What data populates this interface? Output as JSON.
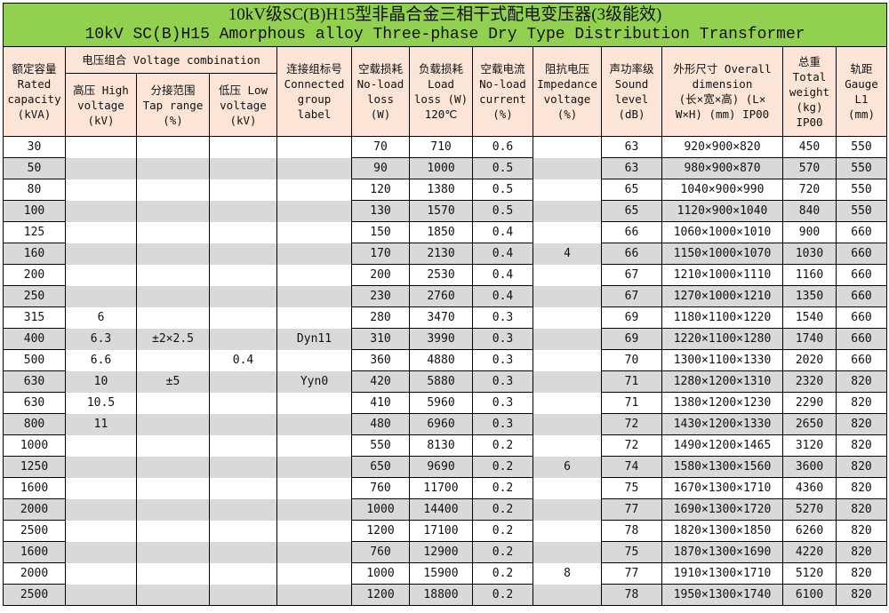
{
  "title": {
    "line1": "10kV级SC(B)H15型非晶合金三相干式配电变压器(3级能效)",
    "line2": "10kV SC(B)H15 Amorphous alloy Three-phase Dry Type Distribution Transformer"
  },
  "headers": {
    "rated_capacity": [
      "额定容量",
      "Rated",
      "capacity",
      "(kVA)"
    ],
    "voltage_combination": "电压组合 Voltage combination",
    "high_voltage": [
      "高压 High",
      "voltage",
      "(kV)"
    ],
    "tap_range": [
      "分接范围",
      "Tap range",
      "(%)"
    ],
    "low_voltage": [
      "低压 Low",
      "voltage",
      "(kV)"
    ],
    "connection": [
      "连接组标号",
      "Connected",
      "group",
      "label"
    ],
    "no_load_loss": [
      "空载损耗",
      "No-load",
      "loss",
      "(W)"
    ],
    "load_loss": [
      "负载损耗",
      "Load",
      "loss (W)",
      "120℃"
    ],
    "no_load_current": [
      "空载电流",
      "No-load",
      "current",
      "(%)"
    ],
    "impedance": [
      "阻抗电压",
      "Impedance",
      "voltage",
      "(%)"
    ],
    "sound": [
      "声功率级",
      "Sound",
      "level",
      "(dB)"
    ],
    "dimension": [
      "外形尺寸 Overall",
      "dimension",
      "(长×宽×高) (L×",
      "W×H) (mm) IP00"
    ],
    "weight": [
      "总重",
      "Total",
      "weight",
      "(kg)",
      "IP00"
    ],
    "gauge": [
      "轨距",
      "Gauge",
      "L1",
      "(mm)"
    ]
  },
  "rows": [
    [
      "30",
      "",
      "",
      "",
      "",
      "70",
      "710",
      "0.6",
      "",
      "63",
      "920×900×820",
      "450",
      "550"
    ],
    [
      "50",
      "",
      "",
      "",
      "",
      "90",
      "1000",
      "0.5",
      "",
      "63",
      "980×900×870",
      "570",
      "550"
    ],
    [
      "80",
      "",
      "",
      "",
      "",
      "120",
      "1380",
      "0.5",
      "",
      "65",
      "1040×900×990",
      "720",
      "550"
    ],
    [
      "100",
      "",
      "",
      "",
      "",
      "130",
      "1570",
      "0.5",
      "",
      "65",
      "1120×900×1040",
      "840",
      "550"
    ],
    [
      "125",
      "",
      "",
      "",
      "",
      "150",
      "1850",
      "0.4",
      "",
      "66",
      "1060×1000×1010",
      "900",
      "660"
    ],
    [
      "160",
      "",
      "",
      "",
      "",
      "170",
      "2130",
      "0.4",
      "4",
      "66",
      "1150×1000×1070",
      "1030",
      "660"
    ],
    [
      "200",
      "",
      "",
      "",
      "",
      "200",
      "2530",
      "0.4",
      "",
      "67",
      "1210×1000×1110",
      "1160",
      "660"
    ],
    [
      "250",
      "",
      "",
      "",
      "",
      "230",
      "2760",
      "0.4",
      "",
      "67",
      "1270×1000×1210",
      "1350",
      "660"
    ],
    [
      "315",
      "6",
      "",
      "",
      "",
      "280",
      "3470",
      "0.3",
      "",
      "69",
      "1180×1100×1220",
      "1540",
      "660"
    ],
    [
      "400",
      "6.3",
      "±2×2.5",
      "",
      "Dyn11",
      "310",
      "3990",
      "0.3",
      "",
      "69",
      "1220×1100×1280",
      "1740",
      "660"
    ],
    [
      "500",
      "6.6",
      "",
      "0.4",
      "",
      "360",
      "4880",
      "0.3",
      "",
      "70",
      "1300×1100×1330",
      "2020",
      "660"
    ],
    [
      "630",
      "10",
      "±5",
      "",
      "Yyn0",
      "420",
      "5880",
      "0.3",
      "",
      "71",
      "1280×1200×1310",
      "2320",
      "820"
    ],
    [
      "630",
      "10.5",
      "",
      "",
      "",
      "410",
      "5960",
      "0.3",
      "",
      "71",
      "1380×1200×1230",
      "2290",
      "820"
    ],
    [
      "800",
      "11",
      "",
      "",
      "",
      "480",
      "6960",
      "0.3",
      "",
      "72",
      "1430×1200×1330",
      "2650",
      "820"
    ],
    [
      "1000",
      "",
      "",
      "",
      "",
      "550",
      "8130",
      "0.2",
      "",
      "72",
      "1490×1200×1465",
      "3120",
      "820"
    ],
    [
      "1250",
      "",
      "",
      "",
      "",
      "650",
      "9690",
      "0.2",
      "6",
      "74",
      "1580×1300×1560",
      "3600",
      "820"
    ],
    [
      "1600",
      "",
      "",
      "",
      "",
      "760",
      "11700",
      "0.2",
      "",
      "75",
      "1670×1300×1710",
      "4360",
      "820"
    ],
    [
      "2000",
      "",
      "",
      "",
      "",
      "1000",
      "14400",
      "0.2",
      "",
      "77",
      "1690×1300×1720",
      "5270",
      "820"
    ],
    [
      "2500",
      "",
      "",
      "",
      "",
      "1200",
      "17100",
      "0.2",
      "",
      "78",
      "1820×1300×1850",
      "6260",
      "820"
    ],
    [
      "1600",
      "",
      "",
      "",
      "",
      "760",
      "12900",
      "0.2",
      "",
      "75",
      "1870×1300×1690",
      "4220",
      "820"
    ],
    [
      "2000",
      "",
      "",
      "",
      "",
      "1000",
      "15900",
      "0.2",
      "8",
      "77",
      "1910×1300×1710",
      "5120",
      "820"
    ],
    [
      "2500",
      "",
      "",
      "",
      "",
      "1200",
      "18800",
      "0.2",
      "",
      "78",
      "1950×1300×1740",
      "6100",
      "820"
    ]
  ],
  "colors": {
    "title_bg": "#92d050",
    "header_bg": "#fce4d6",
    "alt_row_bg": "#d9d9d9"
  }
}
